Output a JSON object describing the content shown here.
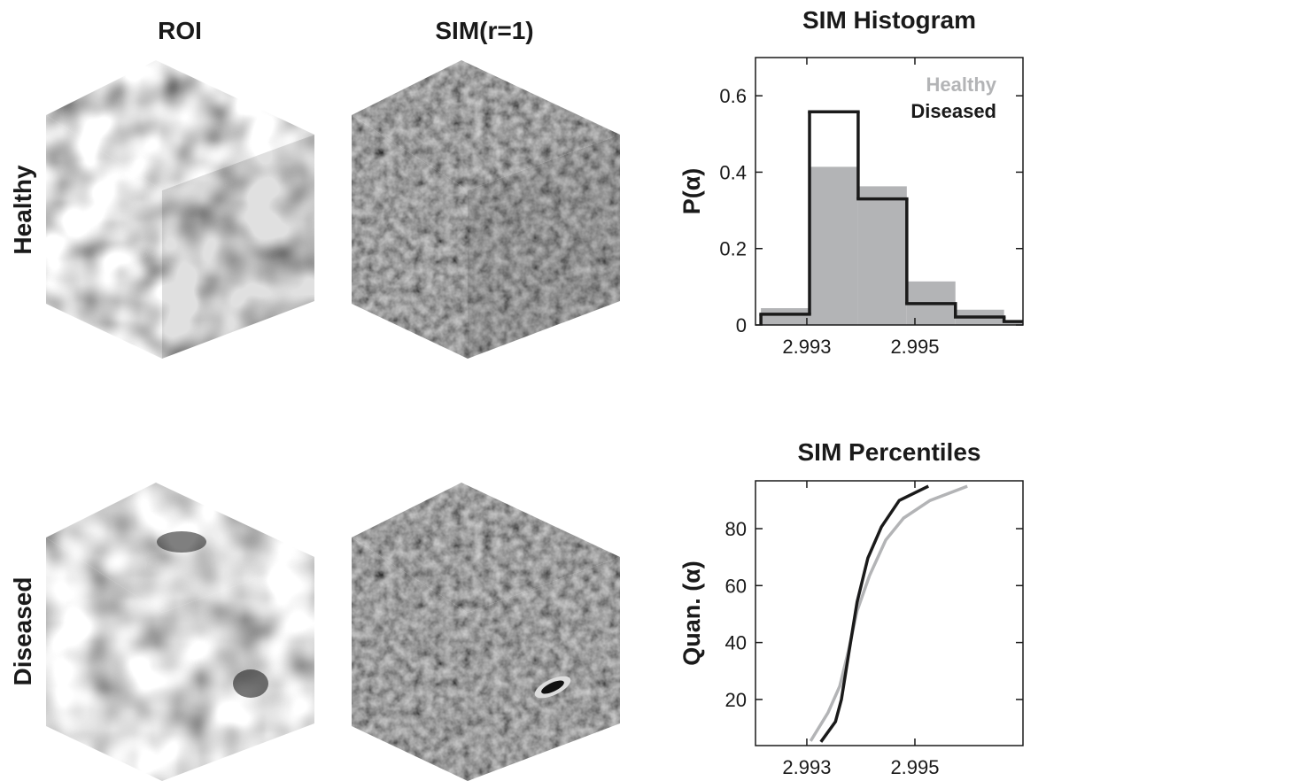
{
  "panels": {
    "column_titles": [
      "ROI",
      "SIM(r=1)"
    ],
    "row_labels": [
      "Healthy",
      "Diseased"
    ]
  },
  "chart_data": [
    {
      "type": "histogram",
      "title": "SIM Histogram",
      "y_label": "P(α)",
      "bins": [
        2.99215,
        2.99305,
        2.99395,
        2.99485,
        2.99575,
        2.99665,
        2.99755
      ],
      "series": [
        {
          "name": "Healthy",
          "color": "#b3b4b6",
          "style": "bar",
          "values": [
            0.044,
            0.414,
            0.363,
            0.114,
            0.04,
            0.01
          ]
        },
        {
          "name": "Diseased",
          "color": "#1a1a1a",
          "style": "step",
          "values": [
            0.028,
            0.558,
            0.33,
            0.056,
            0.021,
            0.009
          ]
        }
      ],
      "xlim": [
        2.99205,
        2.997
      ],
      "xticks": [
        2.993,
        2.995
      ],
      "ylim": [
        0,
        0.7
      ],
      "yticks": [
        0,
        0.2,
        0.4,
        0.6
      ],
      "legend": "upper right"
    },
    {
      "type": "line",
      "title": "SIM Percentiles",
      "y_label": "Quan. (α)",
      "series": [
        {
          "name": "Healthy",
          "color": "#b3b4b6",
          "x": [
            2.99307,
            2.99339,
            2.99361,
            2.99377,
            2.99393,
            2.99416,
            2.99446,
            2.99479,
            2.99528,
            2.99597
          ],
          "values": [
            5.4,
            15.3,
            24.7,
            37.1,
            51.1,
            63.5,
            76.0,
            83.7,
            89.9,
            94.9
          ]
        },
        {
          "name": "Diseased",
          "color": "#1a1a1a",
          "x": [
            2.99326,
            2.99353,
            2.99364,
            2.99377,
            2.99393,
            2.99413,
            2.99438,
            2.99471,
            2.99525
          ],
          "values": [
            5.1,
            12.2,
            20.0,
            35.5,
            54.2,
            69.7,
            80.6,
            89.9,
            94.9
          ]
        }
      ],
      "xlim": [
        2.99205,
        2.997
      ],
      "xticks": [
        2.993,
        2.995
      ],
      "ylim": [
        3.8,
        96.8
      ],
      "yticks": [
        20,
        40,
        60,
        80
      ]
    }
  ]
}
